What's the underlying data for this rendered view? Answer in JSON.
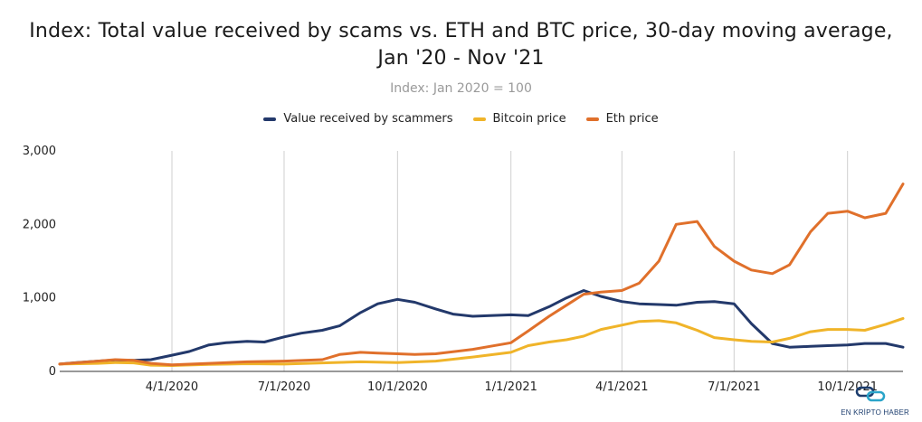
{
  "chart_data": {
    "type": "line",
    "title_line1": "Index: Total value received by scams vs. ETH and BTC price, 30-day moving average,",
    "title_line2": "Jan '20 - Nov '21",
    "subtitle": "Index: Jan 2020 = 100",
    "ylim": [
      0,
      3000
    ],
    "y_ticks": [
      0,
      1000,
      2000,
      3000
    ],
    "y_tick_labels": [
      "0",
      "1,000",
      "2,000",
      "3,000"
    ],
    "x_range": [
      "2020-01-01",
      "2021-11-15"
    ],
    "x_ticks": [
      "2020-04-01",
      "2020-07-01",
      "2020-10-01",
      "2021-01-01",
      "2021-04-01",
      "2021-07-01",
      "2021-10-01"
    ],
    "x_tick_labels": [
      "4/1/2020",
      "7/1/2020",
      "10/1/2020",
      "1/1/2021",
      "4/1/2021",
      "7/1/2021",
      "10/1/2021"
    ],
    "grid": "vertical",
    "legend_position": "top-center",
    "series": [
      {
        "name": "Value received by scammers",
        "color": "#23396b",
        "points": [
          [
            "2020-01-01",
            100
          ],
          [
            "2020-01-15",
            120
          ],
          [
            "2020-02-01",
            140
          ],
          [
            "2020-02-15",
            155
          ],
          [
            "2020-03-01",
            150
          ],
          [
            "2020-03-15",
            160
          ],
          [
            "2020-04-01",
            220
          ],
          [
            "2020-04-15",
            270
          ],
          [
            "2020-05-01",
            360
          ],
          [
            "2020-05-15",
            390
          ],
          [
            "2020-06-01",
            410
          ],
          [
            "2020-06-15",
            400
          ],
          [
            "2020-07-01",
            470
          ],
          [
            "2020-07-15",
            520
          ],
          [
            "2020-08-01",
            560
          ],
          [
            "2020-08-15",
            620
          ],
          [
            "2020-09-01",
            800
          ],
          [
            "2020-09-15",
            920
          ],
          [
            "2020-10-01",
            980
          ],
          [
            "2020-10-15",
            940
          ],
          [
            "2020-11-01",
            850
          ],
          [
            "2020-11-15",
            780
          ],
          [
            "2020-12-01",
            750
          ],
          [
            "2020-12-15",
            760
          ],
          [
            "2021-01-01",
            770
          ],
          [
            "2021-01-15",
            760
          ],
          [
            "2021-02-01",
            880
          ],
          [
            "2021-02-15",
            1000
          ],
          [
            "2021-03-01",
            1100
          ],
          [
            "2021-03-15",
            1020
          ],
          [
            "2021-04-01",
            950
          ],
          [
            "2021-04-15",
            920
          ],
          [
            "2021-05-01",
            910
          ],
          [
            "2021-05-15",
            900
          ],
          [
            "2021-06-01",
            940
          ],
          [
            "2021-06-15",
            950
          ],
          [
            "2021-07-01",
            920
          ],
          [
            "2021-07-15",
            650
          ],
          [
            "2021-08-01",
            380
          ],
          [
            "2021-08-15",
            330
          ],
          [
            "2021-09-01",
            340
          ],
          [
            "2021-09-15",
            350
          ],
          [
            "2021-10-01",
            360
          ],
          [
            "2021-10-15",
            380
          ],
          [
            "2021-11-01",
            380
          ],
          [
            "2021-11-15",
            330
          ]
        ]
      },
      {
        "name": "Bitcoin price",
        "color": "#f0b429",
        "points": [
          [
            "2020-01-01",
            100
          ],
          [
            "2020-02-01",
            110
          ],
          [
            "2020-02-15",
            120
          ],
          [
            "2020-03-01",
            115
          ],
          [
            "2020-03-15",
            85
          ],
          [
            "2020-04-01",
            80
          ],
          [
            "2020-05-01",
            95
          ],
          [
            "2020-06-01",
            105
          ],
          [
            "2020-07-01",
            100
          ],
          [
            "2020-08-01",
            115
          ],
          [
            "2020-09-01",
            130
          ],
          [
            "2020-10-01",
            120
          ],
          [
            "2020-11-01",
            140
          ],
          [
            "2020-12-01",
            195
          ],
          [
            "2021-01-01",
            260
          ],
          [
            "2021-01-15",
            350
          ],
          [
            "2021-02-01",
            400
          ],
          [
            "2021-02-15",
            430
          ],
          [
            "2021-03-01",
            480
          ],
          [
            "2021-03-15",
            570
          ],
          [
            "2021-04-01",
            630
          ],
          [
            "2021-04-15",
            680
          ],
          [
            "2021-05-01",
            690
          ],
          [
            "2021-05-15",
            660
          ],
          [
            "2021-06-01",
            560
          ],
          [
            "2021-06-15",
            460
          ],
          [
            "2021-07-01",
            430
          ],
          [
            "2021-07-15",
            410
          ],
          [
            "2021-08-01",
            400
          ],
          [
            "2021-08-15",
            450
          ],
          [
            "2021-09-01",
            540
          ],
          [
            "2021-09-15",
            570
          ],
          [
            "2021-10-01",
            570
          ],
          [
            "2021-10-15",
            560
          ],
          [
            "2021-11-01",
            640
          ],
          [
            "2021-11-15",
            720
          ]
        ]
      },
      {
        "name": "Eth price",
        "color": "#e0702b",
        "points": [
          [
            "2020-01-01",
            100
          ],
          [
            "2020-02-01",
            140
          ],
          [
            "2020-02-15",
            160
          ],
          [
            "2020-03-01",
            150
          ],
          [
            "2020-03-15",
            110
          ],
          [
            "2020-04-01",
            90
          ],
          [
            "2020-05-01",
            110
          ],
          [
            "2020-06-01",
            130
          ],
          [
            "2020-07-01",
            140
          ],
          [
            "2020-08-01",
            160
          ],
          [
            "2020-08-15",
            230
          ],
          [
            "2020-09-01",
            260
          ],
          [
            "2020-09-15",
            250
          ],
          [
            "2020-10-01",
            240
          ],
          [
            "2020-10-15",
            230
          ],
          [
            "2020-11-01",
            240
          ],
          [
            "2020-12-01",
            300
          ],
          [
            "2020-12-15",
            340
          ],
          [
            "2021-01-01",
            390
          ],
          [
            "2021-01-15",
            550
          ],
          [
            "2021-02-01",
            750
          ],
          [
            "2021-02-15",
            900
          ],
          [
            "2021-03-01",
            1050
          ],
          [
            "2021-03-15",
            1080
          ],
          [
            "2021-04-01",
            1100
          ],
          [
            "2021-04-15",
            1200
          ],
          [
            "2021-05-01",
            1500
          ],
          [
            "2021-05-15",
            2000
          ],
          [
            "2021-06-01",
            2040
          ],
          [
            "2021-06-15",
            1700
          ],
          [
            "2021-07-01",
            1500
          ],
          [
            "2021-07-15",
            1380
          ],
          [
            "2021-08-01",
            1330
          ],
          [
            "2021-08-15",
            1450
          ],
          [
            "2021-09-01",
            1900
          ],
          [
            "2021-09-15",
            2150
          ],
          [
            "2021-10-01",
            2180
          ],
          [
            "2021-10-15",
            2090
          ],
          [
            "2021-11-01",
            2150
          ],
          [
            "2021-11-15",
            2550
          ]
        ]
      }
    ]
  },
  "watermark": {
    "text": "EN KRİPTO HABER",
    "icon": "chain-link-icon"
  }
}
